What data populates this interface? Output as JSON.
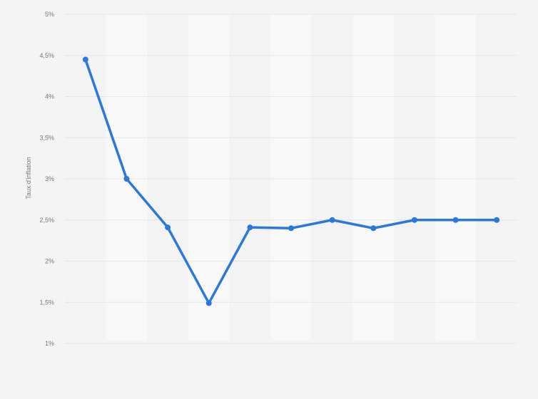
{
  "chart_data": {
    "type": "line",
    "title": "",
    "xlabel": "",
    "ylabel": "Taux d'inflation",
    "ylim": [
      1,
      5
    ],
    "yticks": [
      1,
      1.5,
      2,
      2.5,
      3,
      3.5,
      4,
      4.5,
      5
    ],
    "ytick_labels": [
      "1%",
      "1,5%",
      "2%",
      "2,5%",
      "3%",
      "3,5%",
      "4%",
      "4,5%",
      "5%"
    ],
    "grid": "horizontal dotted",
    "values": [
      4.45,
      3.0,
      2.41,
      1.49,
      2.41,
      2.4,
      2.5,
      2.4,
      2.5,
      2.5,
      2.5
    ],
    "colors": {
      "line": "#2a78dc",
      "background": "#f4f4f4",
      "band_light": "#f8f8f8",
      "band_dark": "#f3f3f3",
      "grid": "#d8d8d8"
    }
  }
}
